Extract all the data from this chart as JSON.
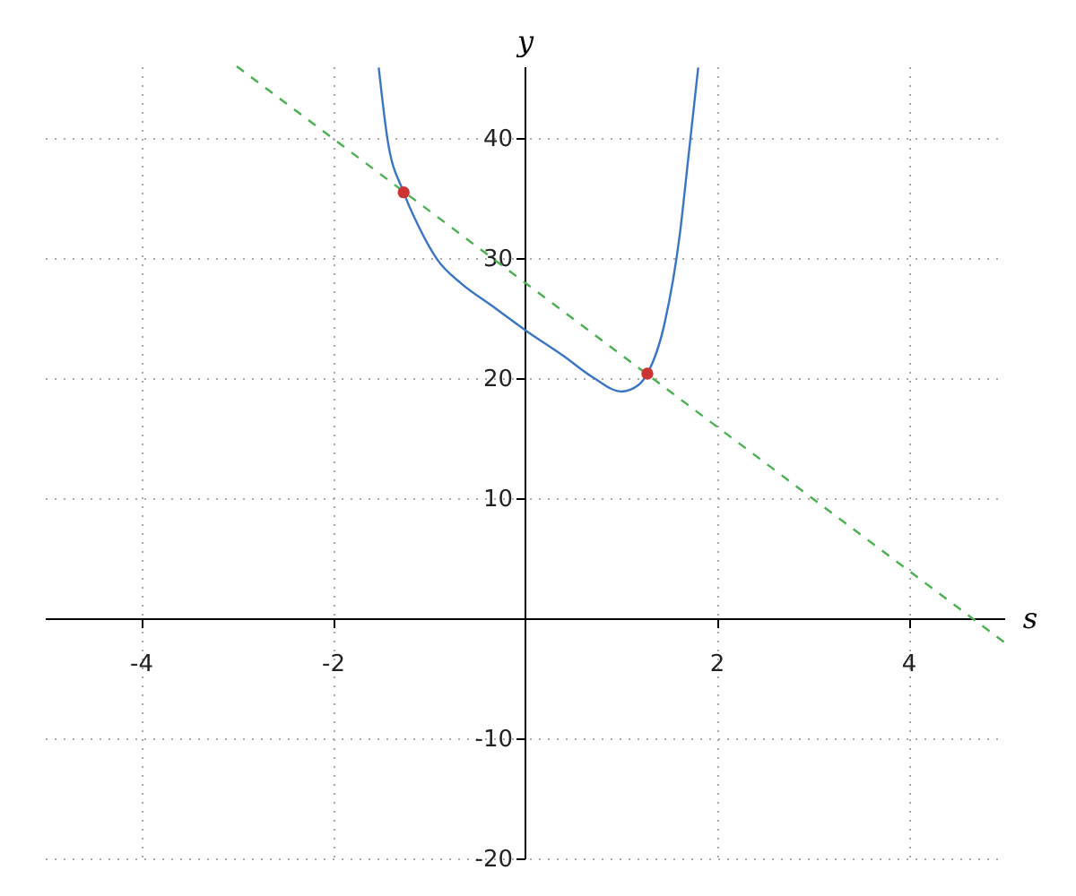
{
  "chart_data": {
    "type": "line",
    "xlabel": "s",
    "ylabel": "y",
    "xlim": [
      -5,
      5
    ],
    "ylim": [
      -20,
      46
    ],
    "xticks": [
      -4,
      -2,
      2,
      4
    ],
    "yticks": [
      -20,
      -10,
      10,
      20,
      30,
      40
    ],
    "grid": true,
    "series": [
      {
        "color": "#3a75c4",
        "x": [
          -1.52,
          -1.43,
          -1.26,
          -1.1,
          -0.91,
          -0.66,
          -0.35,
          0.01,
          0.4,
          0.71,
          1.01,
          1.18,
          1.28,
          1.46,
          1.62,
          1.71,
          1.81
        ],
        "values": [
          45.9,
          40.0,
          35.5,
          32.6,
          29.9,
          27.9,
          26.1,
          24.0,
          21.9,
          20.1,
          18.9,
          19.4,
          20.4,
          24.6,
          32.1,
          38.6,
          45.9
        ],
        "marker": "none",
        "line_style": "solid"
      },
      {
        "color": "#4caf50",
        "x": [
          -3,
          5
        ],
        "values": [
          46,
          -2
        ],
        "marker": "none",
        "line_style": "dashed"
      },
      {
        "type": "scatter",
        "color": "#cc3333",
        "x": [
          -1.26,
          1.28
        ],
        "values": [
          35.5,
          20.4
        ],
        "marker": "circle"
      }
    ]
  }
}
